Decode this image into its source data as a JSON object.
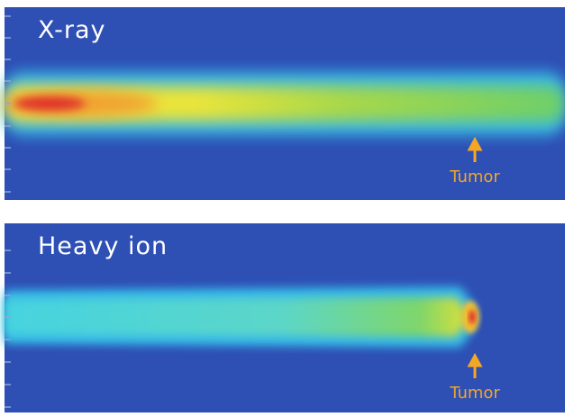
{
  "panels": [
    {
      "label": "X-ray",
      "annotation": "Tumor"
    },
    {
      "label": "Heavy ion",
      "annotation": "Tumor"
    }
  ]
}
